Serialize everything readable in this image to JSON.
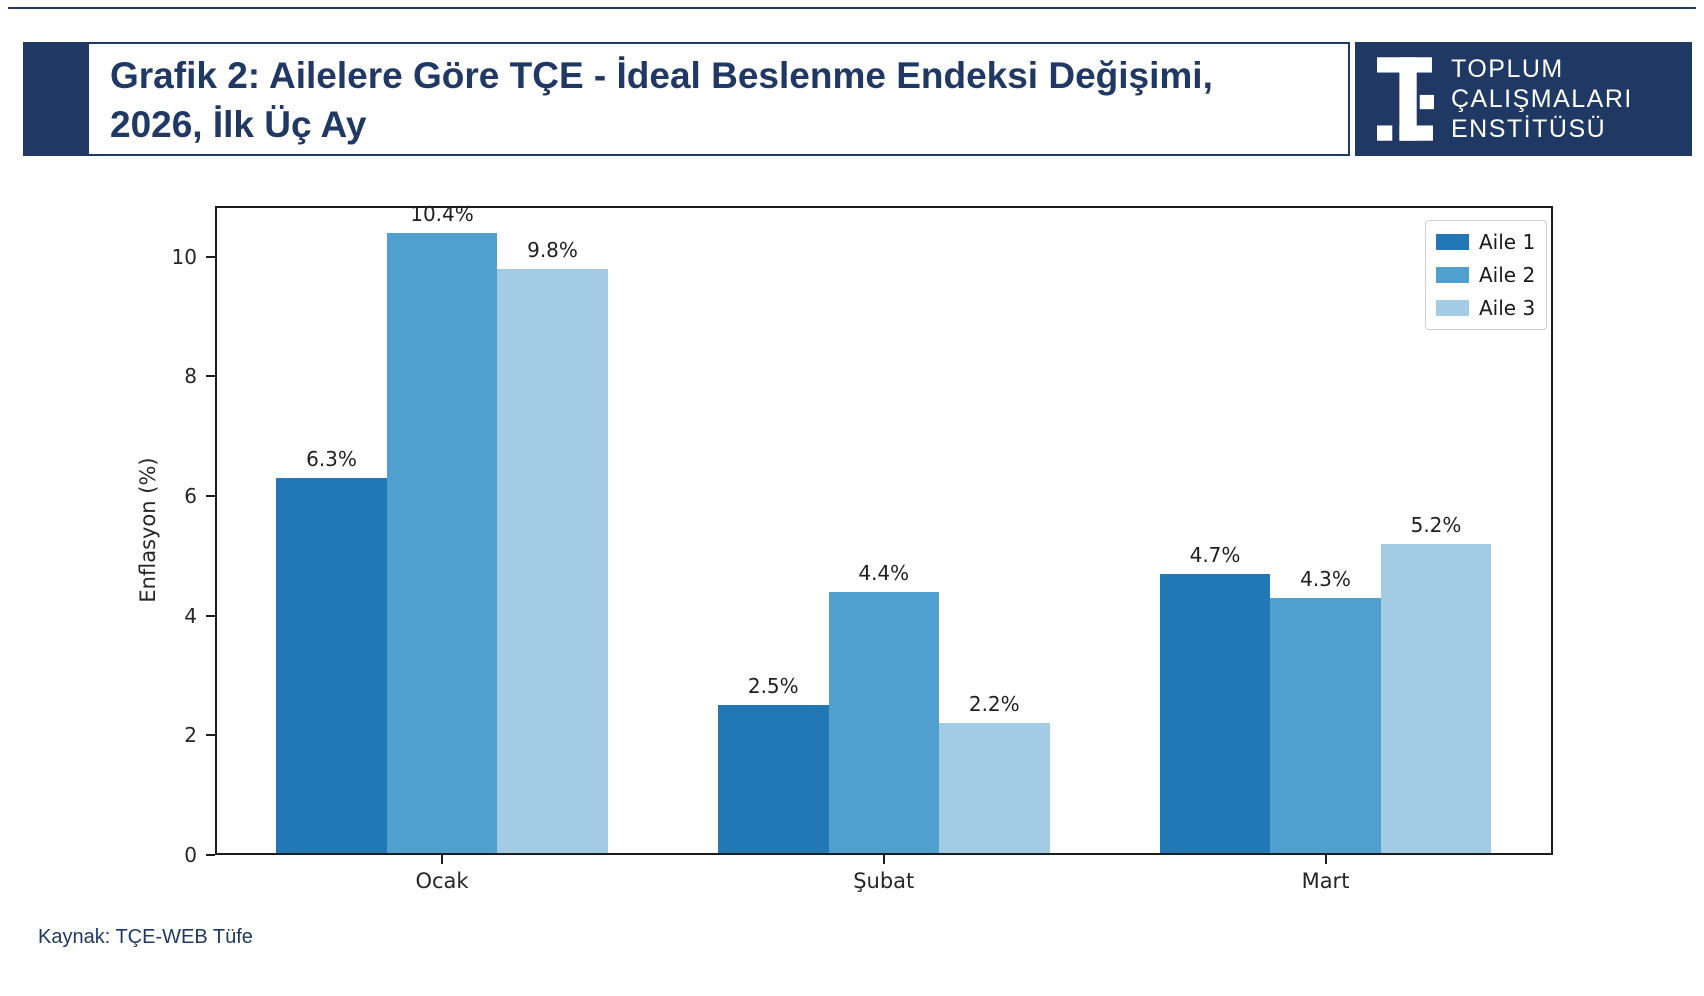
{
  "header": {
    "title_line1": "Grafik 2: Ailelere Göre TÇE - İdeal Beslenme Endeksi Değişimi,",
    "title_line2": "2026, İlk Üç Ay",
    "logo_lines": [
      "TOPLUM",
      "ÇALIŞMALARI",
      "ENSTİTÜSÜ"
    ]
  },
  "footer": {
    "source": "Kaynak: TÇE-WEB Tüfe"
  },
  "colors": {
    "navy": "#1f3864",
    "spine": "#1d1d1d",
    "series": [
      "#2277b5",
      "#4fa0cf",
      "#a3cbe3"
    ]
  },
  "chart_data": {
    "type": "bar",
    "title": "",
    "categories": [
      "Ocak",
      "Şubat",
      "Mart"
    ],
    "series": [
      {
        "name": "Aile 1",
        "color": "#2277b5",
        "values": [
          6.3,
          2.5,
          4.7
        ]
      },
      {
        "name": "Aile 2",
        "color": "#4fa0cf",
        "values": [
          10.4,
          4.4,
          4.3
        ]
      },
      {
        "name": "Aile 3",
        "color": "#a3cbe3",
        "values": [
          9.8,
          2.2,
          5.2
        ]
      }
    ],
    "value_label_suffix": "%",
    "xlabel": "",
    "ylabel": "Enflasyon (%)",
    "yticks": [
      0,
      2,
      4,
      6,
      8,
      10
    ],
    "ylim": [
      0,
      10.85
    ],
    "grid": false,
    "legend": {
      "position": "upper right",
      "entries": [
        "Aile 1",
        "Aile 2",
        "Aile 3"
      ]
    }
  }
}
